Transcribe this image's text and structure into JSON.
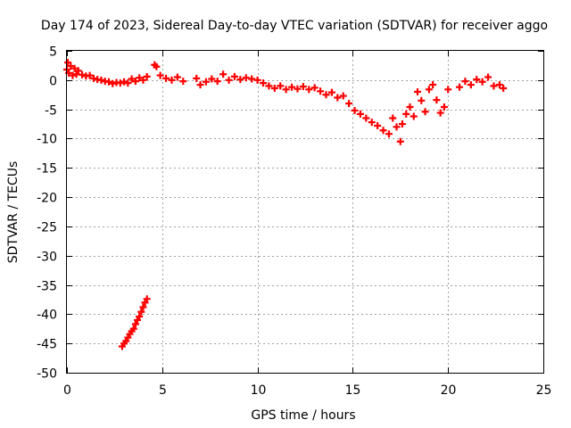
{
  "chart_data": {
    "type": "scatter",
    "title": "Day 174 of 2023, Sidereal Day-to-day VTEC variation (SDTVAR) for receiver aggo",
    "xlabel": "GPS time / hours",
    "ylabel": "SDTVAR / TECUs",
    "xlim": [
      0,
      25
    ],
    "ylim": [
      -50,
      5
    ],
    "xticks": [
      0,
      5,
      10,
      15,
      20,
      25
    ],
    "xtick_labels": [
      "0",
      "5",
      "10",
      "15",
      "20",
      "25"
    ],
    "yticks": [
      5,
      0,
      -5,
      -10,
      -15,
      -20,
      -25,
      -30,
      -35,
      -40,
      -45,
      -50
    ],
    "ytick_labels": [
      "5",
      "0",
      "-5",
      "-10",
      "-15",
      "-20",
      "-25",
      "-30",
      "-35",
      "-40",
      "-45",
      "-50"
    ],
    "grid": true,
    "series": [
      {
        "name": "SDTVAR",
        "color": "#ff0000",
        "marker": "plus",
        "x": [
          0.0,
          0.05,
          0.1,
          0.2,
          0.3,
          0.4,
          0.5,
          0.6,
          0.8,
          1.0,
          1.2,
          1.4,
          1.6,
          1.8,
          2.0,
          2.2,
          2.4,
          2.6,
          2.8,
          3.0,
          3.2,
          3.4,
          3.6,
          3.8,
          4.0,
          4.2,
          4.6,
          4.7,
          4.9,
          5.2,
          5.5,
          5.8,
          6.1,
          6.8,
          7.0,
          7.3,
          7.6,
          7.9,
          8.2,
          8.5,
          8.8,
          9.1,
          9.4,
          9.7,
          10.0,
          10.3,
          10.6,
          10.9,
          11.2,
          11.5,
          11.8,
          12.1,
          12.4,
          12.7,
          13.0,
          13.3,
          13.6,
          13.9,
          14.2,
          14.5,
          14.8,
          15.1,
          15.4,
          15.7,
          16.0,
          16.3,
          16.6,
          16.9,
          17.1,
          17.3,
          17.5,
          17.6,
          17.8,
          18.0,
          18.2,
          18.4,
          18.6,
          18.8,
          19.0,
          19.2,
          19.4,
          19.6,
          19.8,
          20.0,
          20.6,
          20.9,
          21.2,
          21.5,
          21.8,
          22.1,
          22.4,
          22.7,
          22.9,
          2.9,
          3.0,
          3.1,
          3.2,
          3.3,
          3.4,
          3.5,
          3.6,
          3.7,
          3.8,
          3.9,
          4.0,
          4.1,
          4.2
        ],
        "y": [
          1.8,
          3.0,
          1.2,
          2.4,
          0.8,
          2.0,
          1.0,
          1.6,
          0.9,
          0.7,
          0.8,
          0.3,
          0.1,
          0.0,
          -0.2,
          -0.3,
          -0.6,
          -0.4,
          -0.5,
          -0.3,
          -0.5,
          0.2,
          -0.2,
          0.4,
          0.0,
          0.6,
          2.6,
          2.3,
          0.8,
          0.3,
          0.0,
          0.5,
          -0.2,
          0.3,
          -0.8,
          -0.3,
          0.2,
          -0.2,
          1.0,
          0.0,
          0.6,
          0.1,
          0.4,
          0.2,
          0.0,
          -0.5,
          -1.0,
          -1.4,
          -1.0,
          -1.6,
          -1.2,
          -1.5,
          -1.1,
          -1.6,
          -1.3,
          -1.9,
          -2.5,
          -2.1,
          -3.0,
          -2.7,
          -4.0,
          -5.2,
          -5.8,
          -6.5,
          -7.2,
          -7.8,
          -8.6,
          -9.2,
          -6.5,
          -8.0,
          -10.5,
          -7.5,
          -5.8,
          -4.6,
          -6.2,
          -2.0,
          -3.5,
          -5.4,
          -1.6,
          -0.8,
          -3.4,
          -5.6,
          -4.6,
          -1.6,
          -1.2,
          -0.2,
          -0.8,
          0.1,
          -0.3,
          0.5,
          -1.0,
          -0.8,
          -1.4,
          -45.5,
          -45.0,
          -44.6,
          -44.0,
          -43.4,
          -42.9,
          -42.5,
          -41.7,
          -41.0,
          -40.4,
          -39.6,
          -38.8,
          -38.0,
          -37.4
        ]
      }
    ]
  }
}
